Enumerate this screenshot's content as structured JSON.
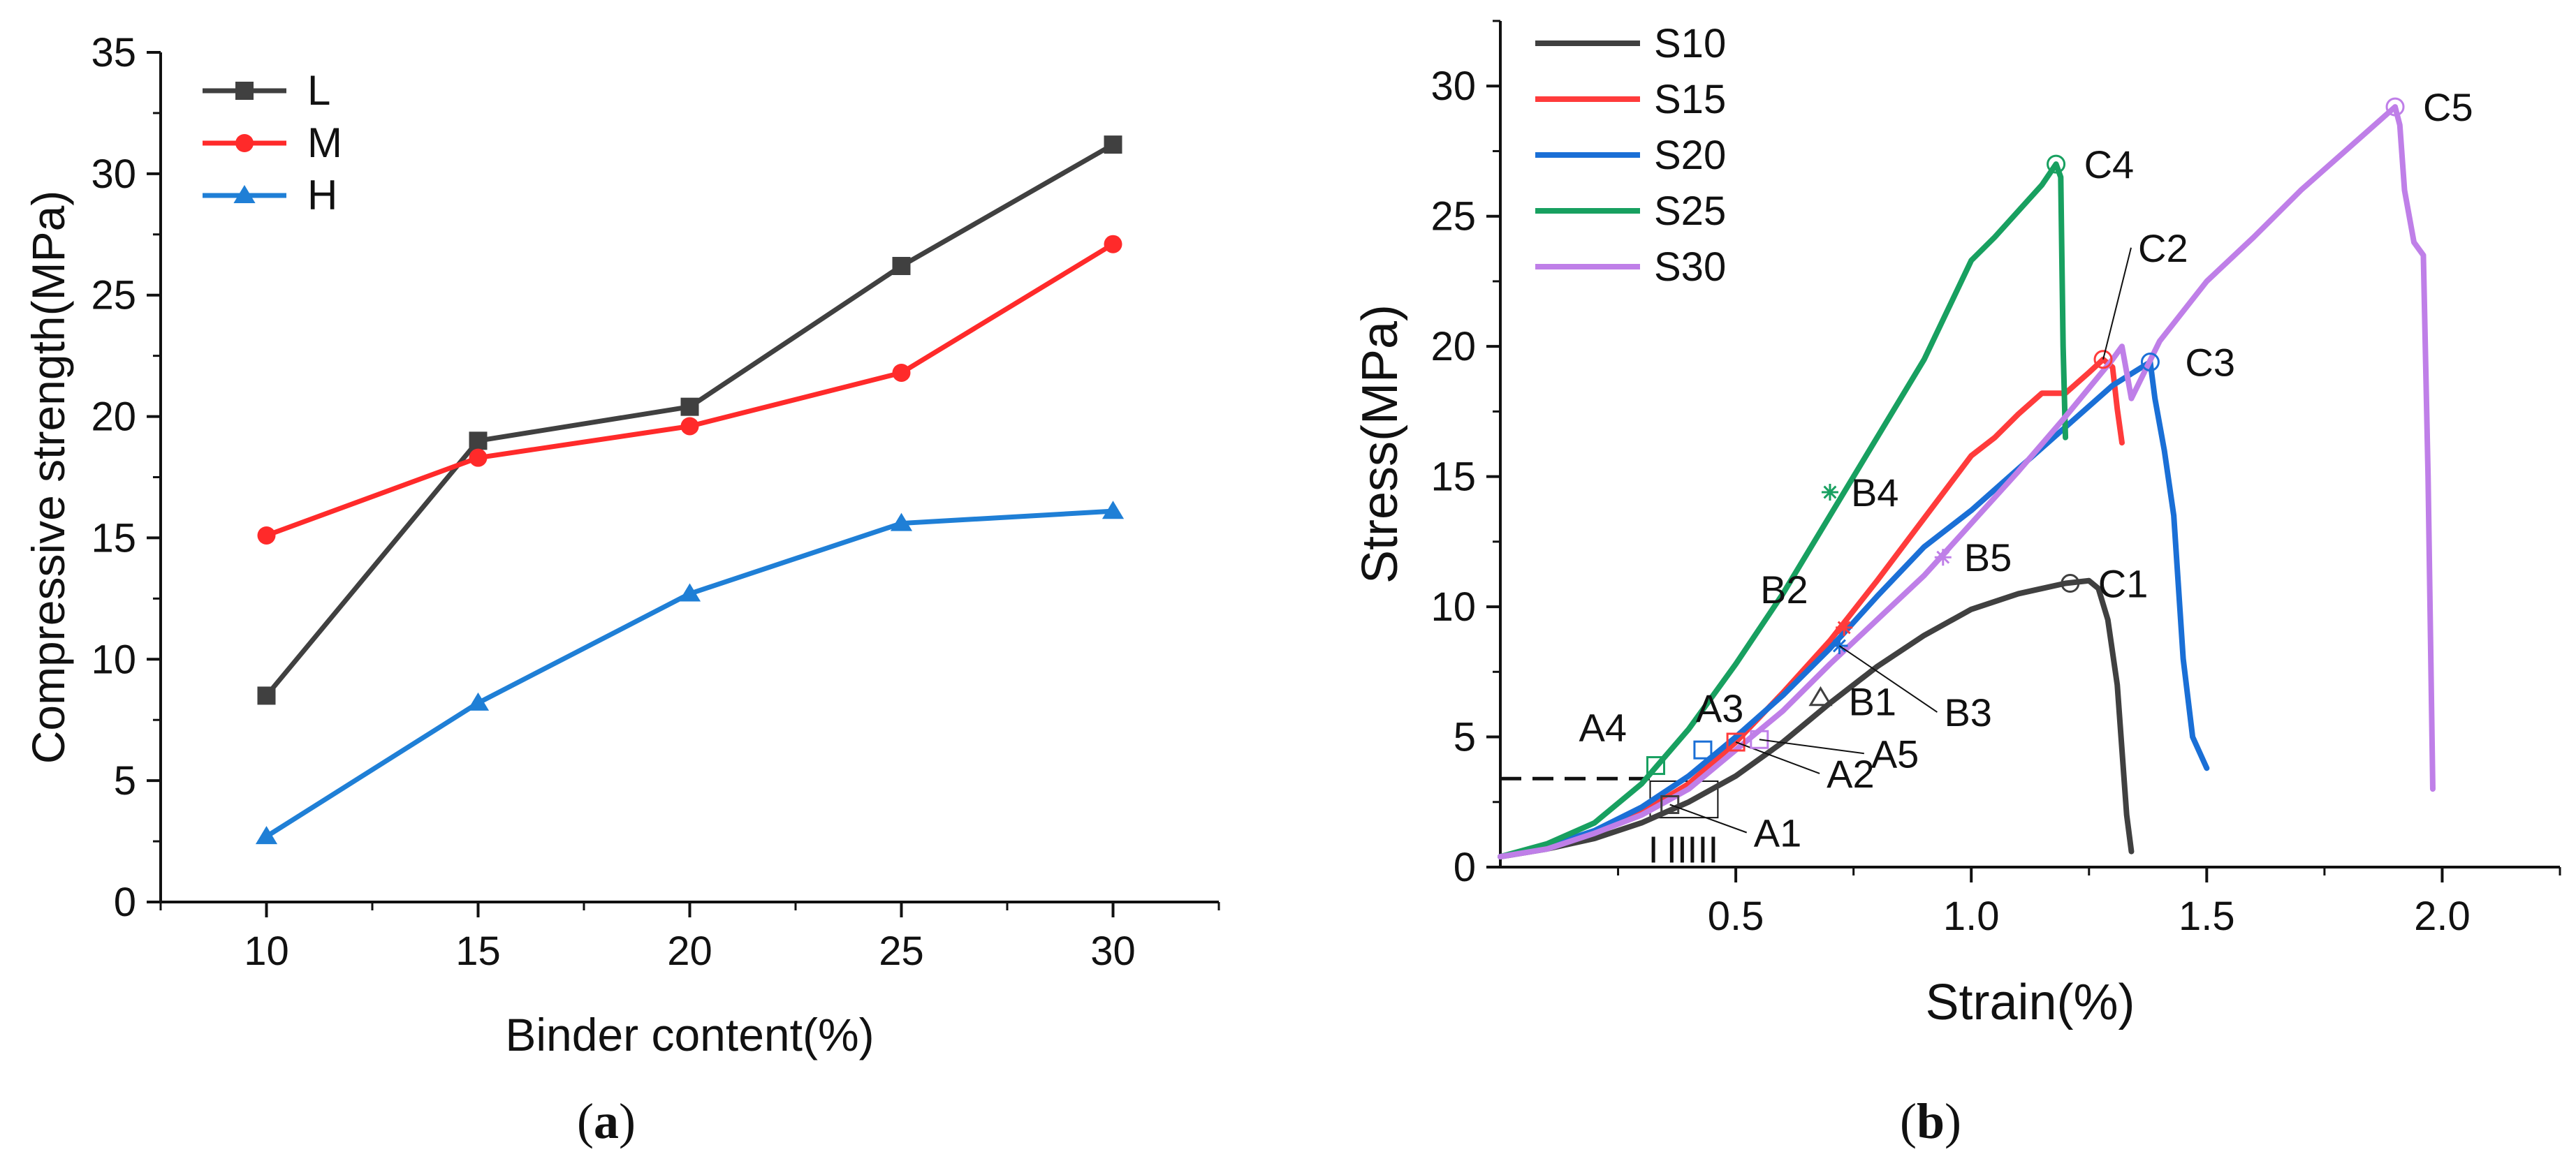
{
  "colors": {
    "L": "#404040",
    "M": "#ff2a2a",
    "H": "#1f7fd6",
    "S10": "#404040",
    "S15": "#ff3b3b",
    "S20": "#1a6fd6",
    "S25": "#18a060",
    "S30": "#bf7fe8"
  },
  "panels": {
    "a": {
      "open": "(",
      "letter": "a",
      "close": ")"
    },
    "b": {
      "open": "(",
      "letter": "b",
      "close": ")"
    }
  },
  "chart_data": [
    {
      "type": "line",
      "panel": "a",
      "xlabel": "Binder content(%)",
      "ylabel": "Compressive strength(MPa)",
      "xlim": [
        7.5,
        32.5
      ],
      "ylim": [
        0,
        35
      ],
      "xticks": [
        10,
        15,
        20,
        25,
        30
      ],
      "yticks": [
        0,
        5,
        10,
        15,
        20,
        25,
        30,
        35
      ],
      "legend_position": "top-left",
      "categories": [
        10,
        15,
        20,
        25,
        30
      ],
      "series": [
        {
          "name": "L",
          "marker": "square",
          "values": [
            8.5,
            19.0,
            20.4,
            26.2,
            31.2
          ]
        },
        {
          "name": "M",
          "marker": "circle",
          "values": [
            15.1,
            18.3,
            19.6,
            21.8,
            27.1
          ]
        },
        {
          "name": "H",
          "marker": "triangle",
          "values": [
            2.7,
            8.2,
            12.7,
            15.6,
            16.1
          ]
        }
      ]
    },
    {
      "type": "line",
      "panel": "b",
      "xlabel": "Strain(%)",
      "ylabel": "Stress(MPa)",
      "xlim": [
        0,
        2.25
      ],
      "ylim": [
        0,
        32.5
      ],
      "xticks": [
        0.5,
        1.0,
        1.5,
        2.0
      ],
      "xtick_labels": [
        "0.5",
        "1.0",
        "1.5",
        "2.0"
      ],
      "yticks": [
        0,
        5,
        10,
        15,
        20,
        25,
        30
      ],
      "legend_position": "top-left",
      "series": [
        {
          "name": "S10",
          "points": [
            [
              0,
              0.4
            ],
            [
              0.1,
              0.7
            ],
            [
              0.2,
              1.1
            ],
            [
              0.3,
              1.7
            ],
            [
              0.4,
              2.5
            ],
            [
              0.5,
              3.5
            ],
            [
              0.6,
              4.8
            ],
            [
              0.7,
              6.3
            ],
            [
              0.8,
              7.7
            ],
            [
              0.9,
              8.9
            ],
            [
              1.0,
              9.9
            ],
            [
              1.1,
              10.5
            ],
            [
              1.2,
              10.9
            ],
            [
              1.25,
              11.0
            ],
            [
              1.27,
              10.7
            ],
            [
              1.29,
              9.5
            ],
            [
              1.31,
              7.0
            ],
            [
              1.32,
              4.5
            ],
            [
              1.33,
              2.0
            ],
            [
              1.34,
              0.6
            ]
          ]
        },
        {
          "name": "S15",
          "points": [
            [
              0,
              0.4
            ],
            [
              0.1,
              0.8
            ],
            [
              0.2,
              1.3
            ],
            [
              0.3,
              2.1
            ],
            [
              0.4,
              3.2
            ],
            [
              0.5,
              4.8
            ],
            [
              0.6,
              6.7
            ],
            [
              0.7,
              8.7
            ],
            [
              0.8,
              11.0
            ],
            [
              0.9,
              13.4
            ],
            [
              1.0,
              15.8
            ],
            [
              1.05,
              16.5
            ],
            [
              1.1,
              17.4
            ],
            [
              1.15,
              18.2
            ],
            [
              1.2,
              18.2
            ],
            [
              1.25,
              19.0
            ],
            [
              1.28,
              19.5
            ],
            [
              1.3,
              19.2
            ],
            [
              1.31,
              17.6
            ],
            [
              1.32,
              16.3
            ]
          ]
        },
        {
          "name": "S20",
          "points": [
            [
              0,
              0.4
            ],
            [
              0.1,
              0.8
            ],
            [
              0.2,
              1.4
            ],
            [
              0.3,
              2.3
            ],
            [
              0.4,
              3.5
            ],
            [
              0.5,
              5.0
            ],
            [
              0.6,
              6.6
            ],
            [
              0.7,
              8.4
            ],
            [
              0.8,
              10.4
            ],
            [
              0.9,
              12.3
            ],
            [
              1.0,
              13.7
            ],
            [
              1.1,
              15.3
            ],
            [
              1.2,
              16.9
            ],
            [
              1.3,
              18.5
            ],
            [
              1.38,
              19.4
            ],
            [
              1.39,
              18.0
            ],
            [
              1.41,
              16.0
            ],
            [
              1.43,
              13.5
            ],
            [
              1.45,
              8.0
            ],
            [
              1.47,
              5.0
            ],
            [
              1.5,
              3.8
            ]
          ]
        },
        {
          "name": "S25",
          "points": [
            [
              0,
              0.4
            ],
            [
              0.1,
              0.9
            ],
            [
              0.2,
              1.7
            ],
            [
              0.3,
              3.2
            ],
            [
              0.4,
              5.3
            ],
            [
              0.5,
              7.8
            ],
            [
              0.6,
              10.5
            ],
            [
              0.7,
              13.5
            ],
            [
              0.8,
              16.5
            ],
            [
              0.9,
              19.5
            ],
            [
              1.0,
              23.3
            ],
            [
              1.05,
              24.2
            ],
            [
              1.1,
              25.2
            ],
            [
              1.15,
              26.2
            ],
            [
              1.18,
              27.0
            ],
            [
              1.19,
              26.5
            ],
            [
              1.195,
              20.0
            ],
            [
              1.2,
              16.5
            ]
          ]
        },
        {
          "name": "S30",
          "points": [
            [
              0,
              0.4
            ],
            [
              0.1,
              0.7
            ],
            [
              0.2,
              1.3
            ],
            [
              0.3,
              2.0
            ],
            [
              0.4,
              3.0
            ],
            [
              0.5,
              4.5
            ],
            [
              0.6,
              6.0
            ],
            [
              0.7,
              7.8
            ],
            [
              0.8,
              9.5
            ],
            [
              0.9,
              11.2
            ],
            [
              1.0,
              13.2
            ],
            [
              1.1,
              15.2
            ],
            [
              1.2,
              17.3
            ],
            [
              1.3,
              19.5
            ],
            [
              1.32,
              20.0
            ],
            [
              1.34,
              18.0
            ],
            [
              1.4,
              20.2
            ],
            [
              1.5,
              22.5
            ],
            [
              1.6,
              24.2
            ],
            [
              1.7,
              26.0
            ],
            [
              1.8,
              27.6
            ],
            [
              1.9,
              29.2
            ],
            [
              1.91,
              28.5
            ],
            [
              1.92,
              26.0
            ],
            [
              1.94,
              24.0
            ],
            [
              1.96,
              23.5
            ],
            [
              1.97,
              15.0
            ],
            [
              1.98,
              3.0
            ]
          ]
        }
      ],
      "point_marks": [
        {
          "label": "A1",
          "x": 0.36,
          "y": 2.4,
          "color": "#404040",
          "symbol": "square"
        },
        {
          "label": "B1",
          "x": 0.68,
          "y": 6.5,
          "color": "#404040",
          "symbol": "triangle"
        },
        {
          "label": "C1",
          "x": 1.21,
          "y": 10.9,
          "color": "#404040",
          "symbol": "circle"
        },
        {
          "label": "A2",
          "x": 0.5,
          "y": 4.8,
          "color": "#ff3b3b",
          "symbol": "square"
        },
        {
          "label": "B2",
          "x": 0.73,
          "y": 9.2,
          "color": "#ff3b3b",
          "symbol": "star"
        },
        {
          "label": "C2",
          "x": 1.28,
          "y": 19.5,
          "color": "#ff3b3b",
          "symbol": "circle"
        },
        {
          "label": "A3",
          "x": 0.43,
          "y": 4.5,
          "color": "#1a6fd6",
          "symbol": "square"
        },
        {
          "label": "B3",
          "x": 0.72,
          "y": 8.5,
          "color": "#1a6fd6",
          "symbol": "star"
        },
        {
          "label": "C3",
          "x": 1.38,
          "y": 19.4,
          "color": "#1a6fd6",
          "symbol": "circle"
        },
        {
          "label": "A4",
          "x": 0.33,
          "y": 3.9,
          "color": "#18a060",
          "symbol": "square"
        },
        {
          "label": "B4",
          "x": 0.7,
          "y": 14.4,
          "color": "#18a060",
          "symbol": "star"
        },
        {
          "label": "C4",
          "x": 1.18,
          "y": 27.0,
          "color": "#18a060",
          "symbol": "circle"
        },
        {
          "label": "A5",
          "x": 0.55,
          "y": 4.9,
          "color": "#bf7fe8",
          "symbol": "square"
        },
        {
          "label": "B5",
          "x": 0.94,
          "y": 11.9,
          "color": "#bf7fe8",
          "symbol": "star"
        },
        {
          "label": "C5",
          "x": 1.9,
          "y": 29.2,
          "color": "#bf7fe8",
          "symbol": "circle"
        }
      ],
      "dashed_line_y": 3.4,
      "region_labels": [
        "I",
        "II",
        "III"
      ]
    }
  ]
}
